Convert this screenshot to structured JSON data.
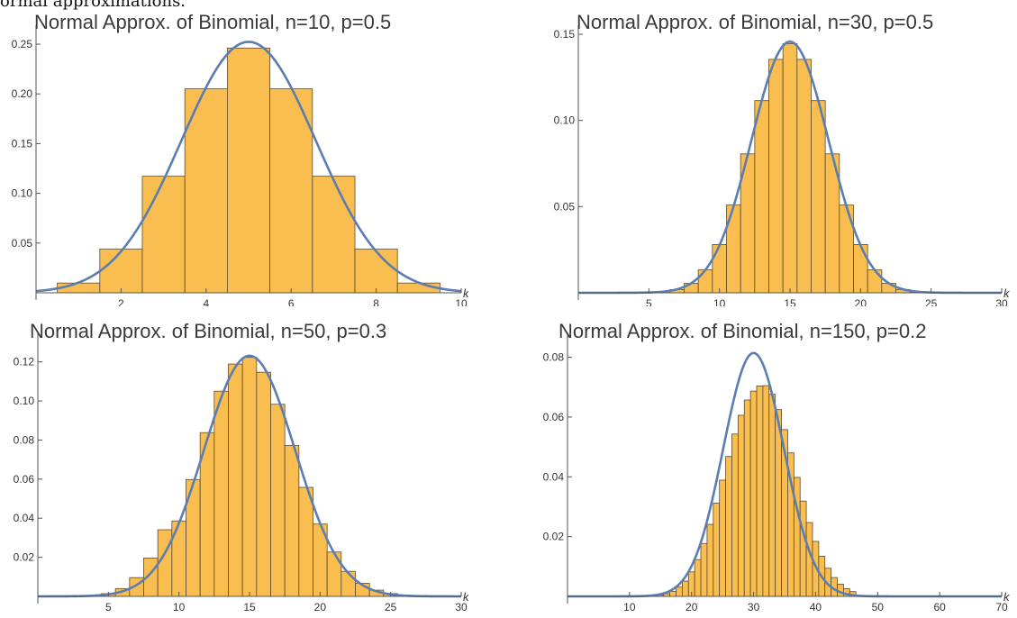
{
  "caption": "ormal approximations.",
  "colors": {
    "bar_fill": "#F9BE4F",
    "bar_stroke": "#5a4a30",
    "curve": "#5B7DB1",
    "axis": "#555555",
    "text": "#333333"
  },
  "chart_data": [
    {
      "type": "bar",
      "title": "Normal Approx. of Binomial, n=10, p=0.5",
      "xlabel": "k",
      "n": 10,
      "p": 0.5,
      "xlim": [
        0,
        10
      ],
      "ylim": [
        0,
        0.26
      ],
      "xticks": [
        "2",
        "4",
        "6",
        "8",
        "10"
      ],
      "yticks": [
        "0.05",
        "0.10",
        "0.15",
        "0.20",
        "0.25"
      ],
      "grid": false,
      "categories": [
        1,
        2,
        3,
        4,
        5,
        6,
        7,
        8,
        9
      ],
      "values": [
        0.0098,
        0.0439,
        0.1172,
        0.2051,
        0.2461,
        0.2051,
        0.1172,
        0.0439,
        0.0098
      ],
      "curve": {
        "type": "normal",
        "mean": 5,
        "sd": 1.581
      }
    },
    {
      "type": "bar",
      "title": "Normal Approx. of Binomial, n=30, p=0.5",
      "xlabel": "k",
      "n": 30,
      "p": 0.5,
      "xlim": [
        0,
        30
      ],
      "ylim": [
        0,
        0.15
      ],
      "xticks": [
        "5",
        "10",
        "15",
        "20",
        "25",
        "30"
      ],
      "yticks": [
        "0.05",
        "0.10",
        "0.15"
      ],
      "grid": false,
      "categories": [
        6,
        7,
        8,
        9,
        10,
        11,
        12,
        13,
        14,
        15,
        16,
        17,
        18,
        19,
        20,
        21,
        22,
        23,
        24
      ],
      "values": [
        0.0006,
        0.0019,
        0.0055,
        0.0133,
        0.028,
        0.0509,
        0.0806,
        0.1115,
        0.1354,
        0.1445,
        0.1354,
        0.1115,
        0.0806,
        0.0509,
        0.028,
        0.0133,
        0.0055,
        0.0019,
        0.0006
      ],
      "curve": {
        "type": "normal",
        "mean": 15,
        "sd": 2.739
      }
    },
    {
      "type": "bar",
      "title": "Normal Approx. of Binomial, n=50, p=0.3",
      "xlabel": "k",
      "n": 50,
      "p": 0.3,
      "xlim": [
        0,
        30
      ],
      "ylim": [
        0,
        0.13
      ],
      "xticks": [
        "5",
        "10",
        "15",
        "20",
        "25",
        "30"
      ],
      "yticks": [
        "0.02",
        "0.04",
        "0.06",
        "0.08",
        "0.10",
        "0.12"
      ],
      "grid": false,
      "categories": [
        4,
        5,
        6,
        7,
        8,
        9,
        10,
        11,
        12,
        13,
        14,
        15,
        16,
        17,
        18,
        19,
        20,
        21,
        22,
        23,
        24,
        25,
        26,
        27
      ],
      "values": [
        0.0004,
        0.0014,
        0.004,
        0.0096,
        0.0196,
        0.0341,
        0.0386,
        0.0598,
        0.0838,
        0.105,
        0.1189,
        0.1223,
        0.1147,
        0.0983,
        0.0772,
        0.0558,
        0.037,
        0.0227,
        0.0128,
        0.0067,
        0.0032,
        0.0014,
        0.0006,
        0.0002
      ],
      "curve": {
        "type": "normal",
        "mean": 15,
        "sd": 3.24
      }
    },
    {
      "type": "bar",
      "title": "Normal Approx. of Binomial, n=150, p=0.2",
      "xlabel": "k",
      "n": 150,
      "p": 0.2,
      "xlim": [
        0,
        70
      ],
      "ylim": [
        0,
        0.085
      ],
      "xticks": [
        "10",
        "20",
        "30",
        "40",
        "50",
        "60",
        "70"
      ],
      "yticks": [
        "0.02",
        "0.04",
        "0.06",
        "0.08"
      ],
      "grid": false,
      "categories": [
        15,
        16,
        17,
        18,
        19,
        20,
        21,
        22,
        23,
        24,
        25,
        26,
        27,
        28,
        29,
        30,
        31,
        32,
        33,
        34,
        35,
        36,
        37,
        38,
        39,
        40,
        41,
        42,
        43,
        44,
        45,
        46
      ],
      "values": [
        0.0004,
        0.0009,
        0.0017,
        0.0031,
        0.0051,
        0.0082,
        0.0123,
        0.0177,
        0.0241,
        0.0312,
        0.0389,
        0.0468,
        0.0543,
        0.0606,
        0.0657,
        0.0687,
        0.0704,
        0.0705,
        0.0676,
        0.0625,
        0.0558,
        0.048,
        0.0398,
        0.0319,
        0.0247,
        0.0184,
        0.0134,
        0.0094,
        0.0063,
        0.0041,
        0.0026,
        0.0016
      ],
      "curve": {
        "type": "normal",
        "mean": 30,
        "sd": 4.899
      }
    }
  ]
}
